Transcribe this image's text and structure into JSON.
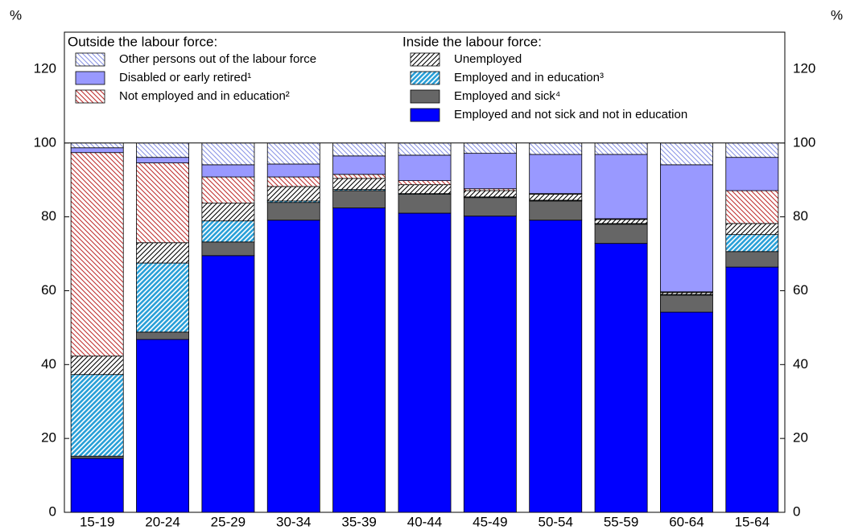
{
  "chart_data": {
    "type": "stacked-bar",
    "y_label": "%",
    "y2_label": "%",
    "legend_titles": [
      "Outside the labour force:",
      "Inside the labour force:"
    ],
    "categories": [
      "15-19",
      "20-24",
      "25-29",
      "30-34",
      "35-39",
      "40-44",
      "45-49",
      "50-54",
      "55-59",
      "60-64",
      "15-64"
    ],
    "series": [
      {
        "name": "Employed and not sick and not in education",
        "color": "#0000ff",
        "hatch": "none",
        "values": [
          14.6,
          46.8,
          69.5,
          79.1,
          82.4,
          81.0,
          80.2,
          79.1,
          72.8,
          54.2,
          66.4
        ]
      },
      {
        "name": "Employed and sick⁴",
        "color": "#666666",
        "hatch": "none",
        "values": [
          0.6,
          2.0,
          3.7,
          4.8,
          4.7,
          5.1,
          5.0,
          5.2,
          5.2,
          4.6,
          4.2
        ]
      },
      {
        "name": "Employed and in education³",
        "color": "#2aa0d8",
        "hatch": "up",
        "values": [
          22.1,
          18.7,
          5.7,
          0.4,
          0.3,
          0.2,
          0.2,
          0.2,
          0.2,
          0.2,
          4.6
        ]
      },
      {
        "name": "Unemployed",
        "color": "#000000",
        "hatch": "up",
        "values": [
          5.0,
          5.5,
          4.8,
          3.9,
          3.0,
          2.4,
          1.7,
          1.6,
          1.1,
          0.5,
          3.0
        ]
      },
      {
        "name": "Not employed and in education²",
        "color": "#c03030",
        "hatch": "down",
        "values": [
          55.1,
          21.6,
          7.1,
          2.6,
          1.1,
          1.1,
          0.5,
          0.2,
          0.2,
          0.2,
          8.9
        ]
      },
      {
        "name": "Disabled or early retired¹",
        "color": "#9999ff",
        "hatch": "none",
        "values": [
          1.3,
          1.5,
          3.3,
          3.5,
          5.0,
          6.9,
          9.6,
          10.6,
          17.4,
          34.4,
          9.0
        ]
      },
      {
        "name": "Other persons out of the labour force",
        "color": "#8c96e6",
        "hatch": "down",
        "values": [
          1.3,
          3.9,
          5.9,
          5.7,
          3.5,
          3.3,
          2.8,
          3.1,
          3.1,
          5.9,
          3.9
        ]
      }
    ],
    "ylim": [
      0,
      130
    ],
    "yticks": [
      0,
      20,
      40,
      60,
      80,
      100,
      120
    ],
    "y2lim": [
      0,
      130
    ],
    "y2ticks": [
      0,
      20,
      40,
      60,
      80,
      100,
      120
    ]
  }
}
